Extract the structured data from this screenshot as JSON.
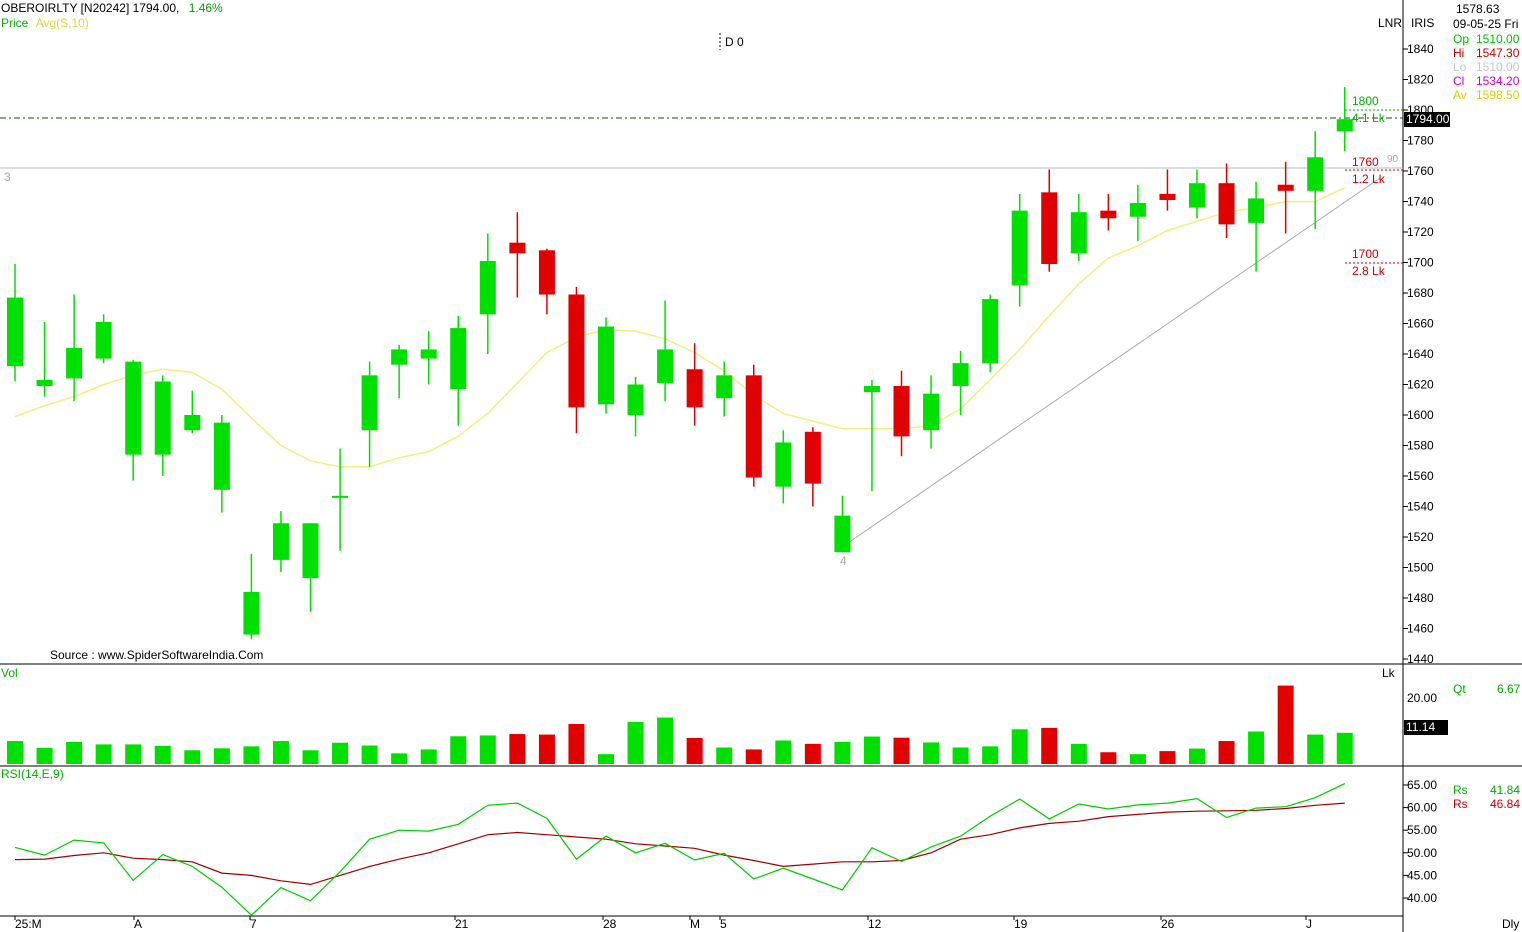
{
  "header": {
    "symbol": "OBEROIRLTY [N20242]",
    "last_price": "1794.00,",
    "change_pct": "1.46%",
    "price_label": "Price",
    "avg_label": "Avg(S,10)",
    "date_marker": "D 0",
    "lnr_label": "LNR",
    "iris_label": "IRIS",
    "source": "Source : www.SpiderSoftwareIndia.Com"
  },
  "info_panel": {
    "value_top": "1578.63",
    "date": "09-05-25 Fri",
    "rows": [
      {
        "key": "Op",
        "value": "1510.00",
        "color": "#00c000"
      },
      {
        "key": "Hi",
        "value": "1547.30",
        "color": "#cc0000"
      },
      {
        "key": "Lo",
        "value": "1510.00",
        "color": "#c8c8c8"
      },
      {
        "key": "Cl",
        "value": "1534.20",
        "color": "#cc00cc"
      },
      {
        "key": "Av",
        "value": "1598.50",
        "color": "#d0d000"
      }
    ]
  },
  "price_tag": "1794.00",
  "annotations": {
    "level_1800": "1800",
    "vol_1800": "4.1 Lk",
    "level_1760": "1760",
    "vol_1760": "1.2 Lk",
    "level_1700": "1700",
    "vol_1700": "2.8 Lk",
    "mark_90": "90",
    "mark_3": "3",
    "mark_4": "4"
  },
  "volume_panel": {
    "label": "Vol",
    "unit": "Lk",
    "qt_label": "Qt",
    "qt_value": "6.67",
    "tag": "11.14",
    "tick": "20.00"
  },
  "rsi_panel": {
    "label": "RSI(14,E,9)",
    "rs1_label": "Rs",
    "rs1_value": "41.84",
    "rs2_label": "Rs",
    "rs2_value": "46.84",
    "ticks": [
      "65.00",
      "60.00",
      "55.00",
      "50.00",
      "45.00",
      "40.00"
    ]
  },
  "colors": {
    "up": "#00e000",
    "down": "#e00000",
    "avg_line": "#f0f080",
    "rsi_line": "#00cc00",
    "rsi_signal": "#a00000"
  },
  "chart_data": {
    "type": "candlestick",
    "price_axis": {
      "min": 1440,
      "max": 1840,
      "ticks": [
        1840,
        1820,
        1800,
        1780,
        1760,
        1740,
        1720,
        1700,
        1680,
        1660,
        1640,
        1620,
        1600,
        1580,
        1560,
        1540,
        1520,
        1500,
        1480,
        1460,
        1440
      ]
    },
    "x_labels": [
      "25:M",
      "A",
      "7",
      "21",
      "28",
      "M",
      "5",
      "12",
      "19",
      "26",
      "J",
      "Dly"
    ],
    "candles": [
      {
        "o": 1632,
        "h": 1699,
        "l": 1622,
        "c": 1677
      },
      {
        "o": 1619,
        "h": 1661,
        "l": 1612,
        "c": 1623
      },
      {
        "o": 1624,
        "h": 1679,
        "l": 1609,
        "c": 1644
      },
      {
        "o": 1637,
        "h": 1666,
        "l": 1634,
        "c": 1661
      },
      {
        "o": 1574,
        "h": 1636,
        "l": 1557,
        "c": 1635
      },
      {
        "o": 1574,
        "h": 1626,
        "l": 1560,
        "c": 1622
      },
      {
        "o": 1590,
        "h": 1616,
        "l": 1588,
        "c": 1600
      },
      {
        "o": 1551,
        "h": 1600,
        "l": 1536,
        "c": 1595
      },
      {
        "o": 1456,
        "h": 1509,
        "l": 1453,
        "c": 1484
      },
      {
        "o": 1505,
        "h": 1537,
        "l": 1497,
        "c": 1529
      },
      {
        "o": 1493,
        "h": 1529,
        "l": 1471,
        "c": 1529
      },
      {
        "o": 1547,
        "h": 1578,
        "l": 1511,
        "c": 1547
      },
      {
        "o": 1590,
        "h": 1635,
        "l": 1566,
        "c": 1626
      },
      {
        "o": 1633,
        "h": 1646,
        "l": 1611,
        "c": 1643
      },
      {
        "o": 1637,
        "h": 1655,
        "l": 1620,
        "c": 1643
      },
      {
        "o": 1617,
        "h": 1665,
        "l": 1593,
        "c": 1657
      },
      {
        "o": 1666,
        "h": 1719,
        "l": 1640,
        "c": 1701
      },
      {
        "o": 1713,
        "h": 1733,
        "l": 1677,
        "c": 1706
      },
      {
        "o": 1708,
        "h": 1709,
        "l": 1666,
        "c": 1679
      },
      {
        "o": 1679,
        "h": 1684,
        "l": 1588,
        "c": 1605
      },
      {
        "o": 1607,
        "h": 1664,
        "l": 1601,
        "c": 1658
      },
      {
        "o": 1600,
        "h": 1625,
        "l": 1586,
        "c": 1620
      },
      {
        "o": 1621,
        "h": 1675,
        "l": 1609,
        "c": 1643
      },
      {
        "o": 1630,
        "h": 1647,
        "l": 1593,
        "c": 1605
      },
      {
        "o": 1611,
        "h": 1635,
        "l": 1599,
        "c": 1626
      },
      {
        "o": 1626,
        "h": 1633,
        "l": 1553,
        "c": 1559
      },
      {
        "o": 1553,
        "h": 1590,
        "l": 1542,
        "c": 1582
      },
      {
        "o": 1589,
        "h": 1592,
        "l": 1540,
        "c": 1555
      },
      {
        "o": 1510,
        "h": 1547,
        "l": 1510,
        "c": 1534
      },
      {
        "o": 1615,
        "h": 1623,
        "l": 1550,
        "c": 1619
      },
      {
        "o": 1619,
        "h": 1629,
        "l": 1573,
        "c": 1586
      },
      {
        "o": 1590,
        "h": 1626,
        "l": 1578,
        "c": 1614
      },
      {
        "o": 1619,
        "h": 1642,
        "l": 1600,
        "c": 1634
      },
      {
        "o": 1634,
        "h": 1679,
        "l": 1628,
        "c": 1676
      },
      {
        "o": 1685,
        "h": 1745,
        "l": 1671,
        "c": 1734
      },
      {
        "o": 1746,
        "h": 1761,
        "l": 1694,
        "c": 1699
      },
      {
        "o": 1706,
        "h": 1745,
        "l": 1701,
        "c": 1733
      },
      {
        "o": 1734,
        "h": 1745,
        "l": 1721,
        "c": 1729
      },
      {
        "o": 1730,
        "h": 1751,
        "l": 1714,
        "c": 1739
      },
      {
        "o": 1745,
        "h": 1761,
        "l": 1734,
        "c": 1741
      },
      {
        "o": 1736,
        "h": 1761,
        "l": 1729,
        "c": 1752
      },
      {
        "o": 1752,
        "h": 1765,
        "l": 1716,
        "c": 1725
      },
      {
        "o": 1726,
        "h": 1753,
        "l": 1694,
        "c": 1742
      },
      {
        "o": 1751,
        "h": 1766,
        "l": 1719,
        "c": 1747
      },
      {
        "o": 1747,
        "h": 1786,
        "l": 1722,
        "c": 1769
      },
      {
        "o": 1786,
        "h": 1815,
        "l": 1773,
        "c": 1794
      }
    ],
    "avg_line": [
      1599,
      1606,
      1612,
      1620,
      1626,
      1630,
      1628,
      1617,
      1598,
      1580,
      1570,
      1566,
      1566,
      1572,
      1576,
      1586,
      1601,
      1621,
      1641,
      1651,
      1656,
      1655,
      1650,
      1641,
      1629,
      1613,
      1601,
      1596,
      1591,
      1591,
      1591,
      1593,
      1604,
      1623,
      1643,
      1665,
      1686,
      1703,
      1711,
      1721,
      1727,
      1733,
      1736,
      1740,
      1740,
      1749
    ],
    "volume": [
      8.2,
      5.8,
      7.9,
      7.0,
      7.0,
      6.5,
      4.9,
      5.6,
      6.3,
      8.2,
      4.9,
      7.6,
      6.6,
      3.8,
      5.2,
      9.9,
      10.2,
      10.7,
      10.5,
      14.3,
      3.5,
      15.0,
      16.6,
      9.3,
      5.9,
      5.2,
      8.4,
      7.2,
      7.9,
      9.8,
      9.4,
      7.7,
      5.9,
      6.3,
      12.4,
      12.9,
      7.2,
      4.2,
      3.5,
      4.6,
      5.5,
      8.2,
      11.6,
      28.0,
      10.5,
      11.14
    ],
    "volume_axis": {
      "max": 30
    },
    "rsi": [
      51.2,
      49.5,
      52.8,
      52.2,
      43.9,
      49.6,
      47.0,
      42.4,
      36.2,
      42.3,
      39.4,
      45.8,
      53.0,
      55.0,
      54.8,
      56.3,
      60.5,
      61.0,
      57.6,
      48.6,
      53.7,
      50.0,
      52.1,
      48.4,
      49.9,
      44.2,
      46.6,
      44.2,
      41.8,
      51.1,
      48.1,
      51.3,
      53.7,
      58.1,
      61.9,
      57.5,
      60.8,
      59.7,
      60.6,
      61.0,
      62.0,
      57.8,
      59.9,
      60.2,
      62.2,
      65.3
    ],
    "rsi_signal": [
      48.5,
      48.6,
      49.4,
      50.0,
      48.8,
      48.5,
      48.0,
      45.5,
      45.0,
      43.8,
      43.0,
      45.0,
      47.0,
      48.6,
      50.0,
      52.0,
      54.0,
      54.5,
      54.0,
      53.5,
      53.0,
      52.0,
      51.5,
      51.0,
      49.5,
      48.3,
      47.0,
      47.5,
      48.0,
      48.0,
      48.3,
      50.0,
      53.0,
      54.0,
      55.5,
      56.5,
      57.0,
      58.0,
      58.5,
      59.0,
      59.2,
      59.3,
      59.4,
      59.8,
      60.5,
      61.0
    ],
    "rsi_axis": {
      "min": 37.5,
      "max": 67.5
    }
  }
}
